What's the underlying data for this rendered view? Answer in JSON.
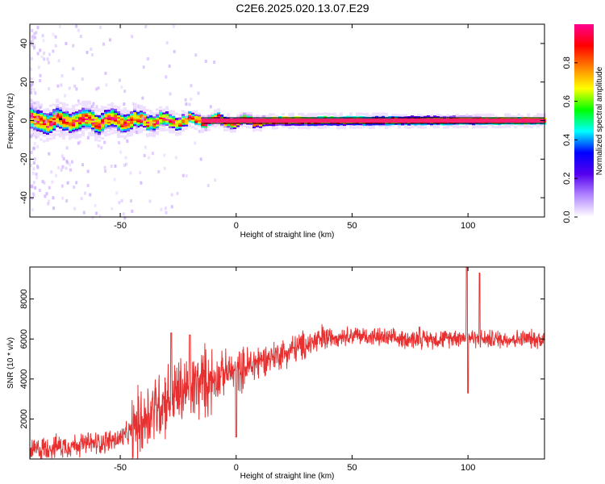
{
  "title": "C2E6.2025.020.13.07.E29",
  "chart_data": [
    {
      "type": "heatmap",
      "xlabel": "Height of straight line (km)",
      "ylabel": "Frequency (Hz)",
      "xlim": [
        -89,
        133
      ],
      "ylim": [
        -50,
        50
      ],
      "xticks": [
        -50,
        0,
        50,
        100
      ],
      "yticks": [
        -40,
        -20,
        0,
        20,
        40
      ],
      "colorbar": {
        "label": "Normalized spectral amplitude",
        "range": [
          0,
          1
        ],
        "ticks": [
          "0.0",
          "0.2",
          "0.4",
          "0.6",
          "0.8"
        ],
        "colors": [
          "#ffffff",
          "#b388ff",
          "#5500ee",
          "#0000ff",
          "#00ffff",
          "#00ff00",
          "#ffff00",
          "#ff8000",
          "#ff0000",
          "#ff0090"
        ]
      },
      "ridge_frequency_hz": 0,
      "ridge_spread": [
        {
          "x": -89,
          "halfwidth_hz": 6
        },
        {
          "x": -50,
          "halfwidth_hz": 5
        },
        {
          "x": -20,
          "halfwidth_hz": 3
        },
        {
          "x": 0,
          "halfwidth_hz": 2.5
        },
        {
          "x": 133,
          "halfwidth_hz": 2
        }
      ]
    },
    {
      "type": "line",
      "xlabel": "Height of straight line (km)",
      "ylabel": "SNR (10 * v/v)",
      "xlim": [
        -89,
        133
      ],
      "ylim": [
        0,
        9600
      ],
      "xticks": [
        -50,
        0,
        50,
        100
      ],
      "yticks": [
        2000,
        4000,
        6000,
        8000
      ],
      "series": [
        {
          "color": "#e83030",
          "x": [
            -89,
            -80,
            -70,
            -60,
            -50,
            -45,
            -40,
            -35,
            -30,
            -25,
            -20,
            -15,
            -10,
            -5,
            0,
            5,
            10,
            20,
            30,
            40,
            50,
            60,
            70,
            80,
            90,
            95,
            100,
            105,
            110,
            120,
            133
          ],
          "y": [
            400,
            600,
            700,
            800,
            1000,
            1400,
            2000,
            2600,
            3000,
            3300,
            3500,
            3800,
            4000,
            4300,
            4400,
            4600,
            4900,
            5300,
            5700,
            6100,
            6200,
            6100,
            6000,
            6000,
            6000,
            6100,
            6100,
            6000,
            6000,
            6000,
            6000
          ],
          "peaks": [
            {
              "x": 99.5,
              "y": 9600
            },
            {
              "x": 105,
              "y": 9300
            },
            {
              "x": 100,
              "y": 3300
            },
            {
              "x": 79,
              "y": 6600
            },
            {
              "x": -28,
              "y": 6300
            },
            {
              "x": -20,
              "y": 6200
            },
            {
              "x": 0,
              "y": 1100
            }
          ]
        }
      ]
    }
  ]
}
